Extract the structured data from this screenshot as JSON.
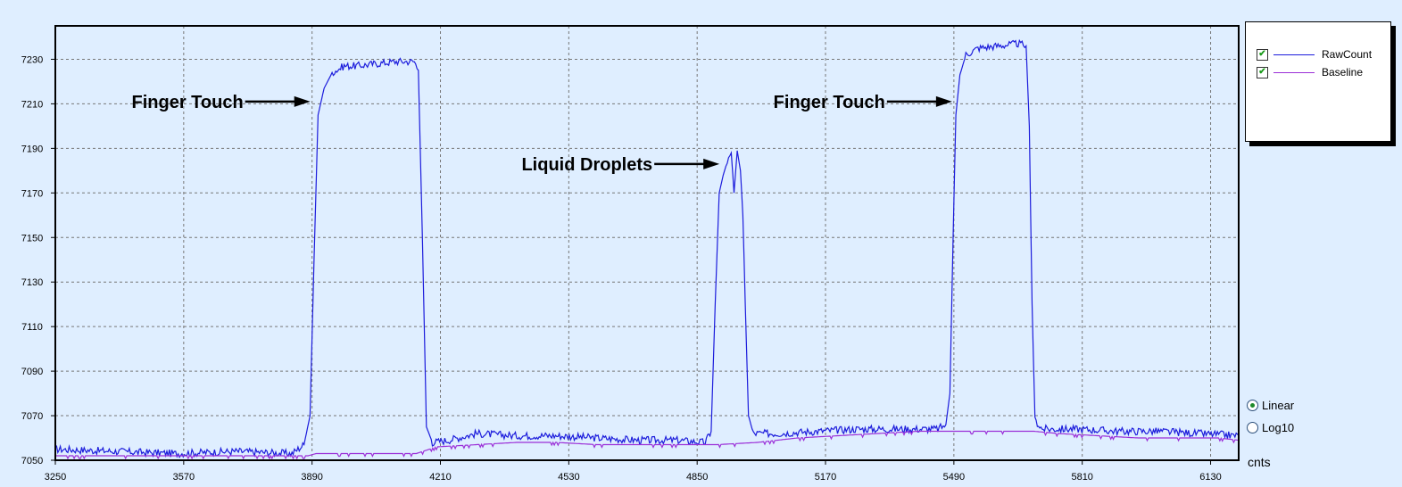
{
  "chart_data": {
    "type": "line",
    "x_unit_label": "cnts",
    "xlim": [
      3250,
      6200
    ],
    "ylim": [
      7050,
      7245
    ],
    "x_ticks": [
      3250,
      3570,
      3890,
      4210,
      4530,
      4850,
      5170,
      5490,
      5810,
      6130
    ],
    "y_ticks": [
      7050,
      7070,
      7090,
      7110,
      7130,
      7150,
      7170,
      7190,
      7210,
      7230
    ],
    "grid": true,
    "legend_position": "top-right",
    "series": [
      {
        "name": "RawCount",
        "color": "#1c1cdc",
        "points": [
          [
            3250,
            7055
          ],
          [
            3400,
            7054
          ],
          [
            3550,
            7053
          ],
          [
            3700,
            7054
          ],
          [
            3840,
            7053
          ],
          [
            3870,
            7057
          ],
          [
            3885,
            7070
          ],
          [
            3895,
            7140
          ],
          [
            3905,
            7205
          ],
          [
            3920,
            7217
          ],
          [
            3940,
            7224
          ],
          [
            3970,
            7227
          ],
          [
            4000,
            7227
          ],
          [
            4050,
            7228
          ],
          [
            4100,
            7229
          ],
          [
            4145,
            7229
          ],
          [
            4155,
            7225
          ],
          [
            4165,
            7150
          ],
          [
            4175,
            7065
          ],
          [
            4190,
            7058
          ],
          [
            4230,
            7059
          ],
          [
            4300,
            7062
          ],
          [
            4400,
            7061
          ],
          [
            4500,
            7061
          ],
          [
            4600,
            7060
          ],
          [
            4700,
            7059
          ],
          [
            4800,
            7059
          ],
          [
            4870,
            7058
          ],
          [
            4885,
            7063
          ],
          [
            4895,
            7120
          ],
          [
            4905,
            7170
          ],
          [
            4915,
            7178
          ],
          [
            4925,
            7184
          ],
          [
            4935,
            7188
          ],
          [
            4942,
            7170
          ],
          [
            4950,
            7189
          ],
          [
            4958,
            7180
          ],
          [
            4964,
            7160
          ],
          [
            4970,
            7120
          ],
          [
            4978,
            7070
          ],
          [
            4990,
            7062
          ],
          [
            5050,
            7062
          ],
          [
            5150,
            7063
          ],
          [
            5250,
            7064
          ],
          [
            5350,
            7064
          ],
          [
            5450,
            7064
          ],
          [
            5470,
            7066
          ],
          [
            5480,
            7080
          ],
          [
            5488,
            7150
          ],
          [
            5495,
            7205
          ],
          [
            5505,
            7223
          ],
          [
            5520,
            7232
          ],
          [
            5550,
            7235
          ],
          [
            5600,
            7236
          ],
          [
            5650,
            7237
          ],
          [
            5670,
            7236
          ],
          [
            5678,
            7200
          ],
          [
            5685,
            7120
          ],
          [
            5692,
            7068
          ],
          [
            5710,
            7064
          ],
          [
            5800,
            7064
          ],
          [
            5900,
            7063
          ],
          [
            6000,
            7063
          ],
          [
            6100,
            7062
          ],
          [
            6200,
            7061
          ]
        ]
      },
      {
        "name": "Baseline",
        "color": "#9b2fd8",
        "points": [
          [
            3250,
            7052
          ],
          [
            3500,
            7052
          ],
          [
            3750,
            7052
          ],
          [
            3880,
            7052
          ],
          [
            3900,
            7053
          ],
          [
            4150,
            7053
          ],
          [
            4200,
            7056
          ],
          [
            4300,
            7057
          ],
          [
            4400,
            7058
          ],
          [
            4500,
            7058
          ],
          [
            4600,
            7057
          ],
          [
            4700,
            7057
          ],
          [
            4800,
            7057
          ],
          [
            4900,
            7057
          ],
          [
            5000,
            7058
          ],
          [
            5100,
            7060
          ],
          [
            5200,
            7061
          ],
          [
            5300,
            7062
          ],
          [
            5400,
            7063
          ],
          [
            5480,
            7063
          ],
          [
            5690,
            7063
          ],
          [
            5750,
            7062
          ],
          [
            5850,
            7061
          ],
          [
            5950,
            7060
          ],
          [
            6050,
            7060
          ],
          [
            6150,
            7060
          ],
          [
            6200,
            7059
          ]
        ]
      }
    ],
    "annotations": [
      {
        "text": "Finger Touch",
        "x": 3890,
        "y": 7211
      },
      {
        "text": "Liquid Droplets",
        "x": 4910,
        "y": 7183
      },
      {
        "text": "Finger Touch",
        "x": 5490,
        "y": 7211
      }
    ]
  },
  "controls": {
    "scale_options": [
      {
        "label": "Linear",
        "checked": true
      },
      {
        "label": "Log10",
        "checked": false
      }
    ]
  }
}
